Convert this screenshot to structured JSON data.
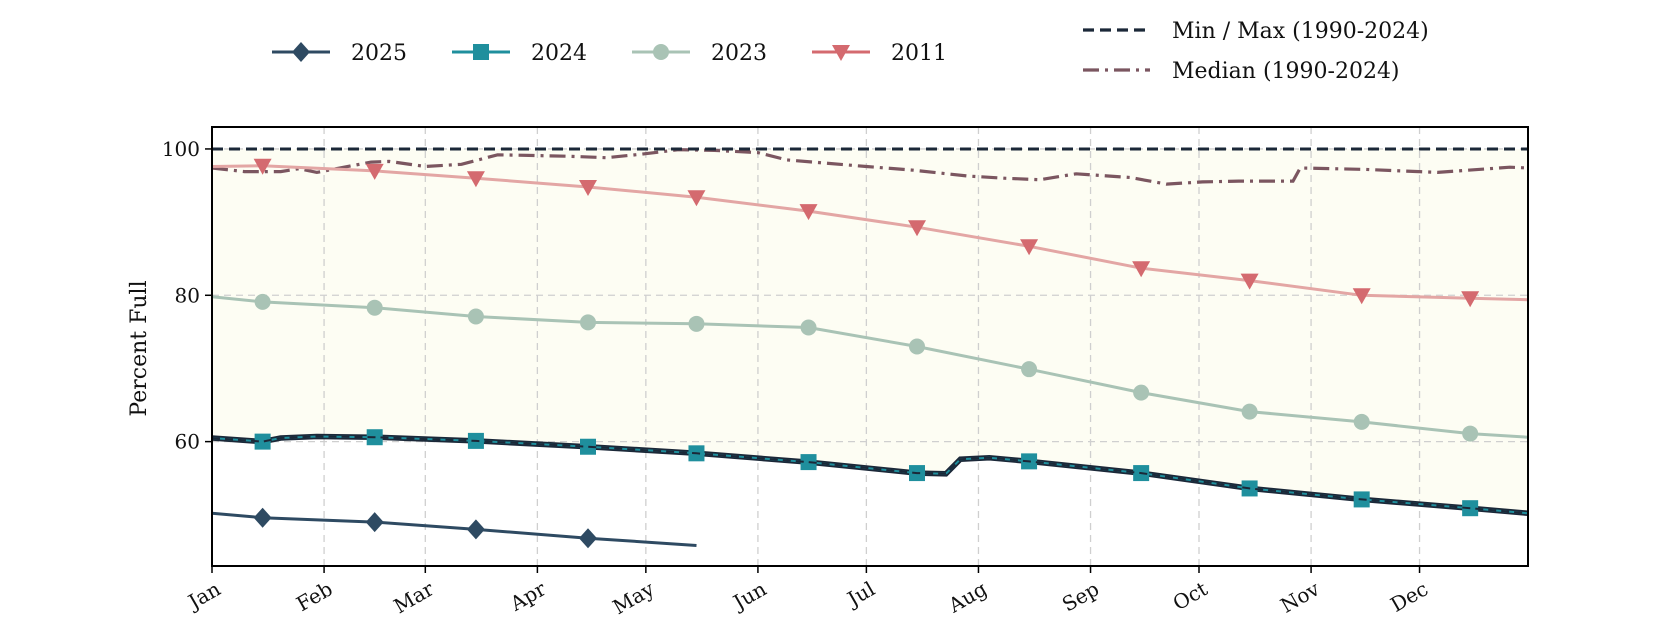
{
  "chart_data": {
    "type": "line",
    "title": "",
    "xlabel": "",
    "ylabel": "Percent Full",
    "xlim": [
      1,
      365
    ],
    "ylim": [
      43,
      103
    ],
    "x_ticks": [
      {
        "label": "Jan",
        "day": 1
      },
      {
        "label": "Feb",
        "day": 32
      },
      {
        "label": "Mar",
        "day": 60
      },
      {
        "label": "Apr",
        "day": 91
      },
      {
        "label": "May",
        "day": 121
      },
      {
        "label": "Jun",
        "day": 152
      },
      {
        "label": "Jul",
        "day": 182
      },
      {
        "label": "Aug",
        "day": 213
      },
      {
        "label": "Sep",
        "day": 244
      },
      {
        "label": "Oct",
        "day": 274
      },
      {
        "label": "Nov",
        "day": 305
      },
      {
        "label": "Dec",
        "day": 335
      }
    ],
    "y_ticks": [
      60,
      80,
      100
    ],
    "grid": true,
    "legend_placement": "top",
    "series": [
      {
        "name": "2025",
        "color": "#2e4a62",
        "marker": "diamond",
        "x": [
          1,
          15,
          46,
          74,
          105,
          135
        ],
        "y": [
          50.2,
          49.6,
          49.0,
          48.0,
          46.8,
          45.8
        ],
        "marker_x": [
          15,
          46,
          74,
          105
        ]
      },
      {
        "name": "2024",
        "color": "#1f8f9d",
        "marker": "square",
        "x": [
          1,
          15,
          20,
          30,
          46,
          74,
          105,
          135,
          166,
          196,
          204,
          208,
          216,
          227,
          258,
          288,
          319,
          349,
          365
        ],
        "y": [
          60.5,
          60.0,
          60.5,
          60.7,
          60.6,
          60.1,
          59.3,
          58.4,
          57.2,
          55.7,
          55.6,
          57.6,
          57.8,
          57.3,
          55.7,
          53.6,
          52.1,
          50.9,
          50.2
        ],
        "marker_x": [
          15,
          46,
          74,
          105,
          135,
          166,
          196,
          227,
          258,
          288,
          319,
          349
        ]
      },
      {
        "name": "2023",
        "color": "#a9c3b5",
        "marker": "circle",
        "x": [
          1,
          15,
          46,
          74,
          105,
          135,
          166,
          196,
          227,
          258,
          288,
          319,
          349,
          365
        ],
        "y": [
          79.8,
          79.1,
          78.3,
          77.1,
          76.3,
          76.1,
          75.6,
          73.0,
          69.9,
          66.7,
          64.1,
          62.7,
          61.1,
          60.6
        ],
        "marker_x": [
          15,
          46,
          74,
          105,
          135,
          166,
          196,
          227,
          258,
          288,
          319,
          349
        ]
      },
      {
        "name": "2011",
        "color": "#d46a6f",
        "line_color": "#e3a6a4",
        "marker": "triangle-down",
        "x": [
          1,
          15,
          46,
          74,
          105,
          135,
          166,
          196,
          227,
          258,
          288,
          319,
          349,
          365
        ],
        "y": [
          97.6,
          97.7,
          97.0,
          96.0,
          94.8,
          93.4,
          91.5,
          89.3,
          86.7,
          83.7,
          82.0,
          80.0,
          79.6,
          79.4
        ],
        "marker_x": [
          15,
          46,
          74,
          105,
          135,
          166,
          196,
          227,
          258,
          288,
          319,
          349
        ]
      },
      {
        "name": "Min / Max (1990-2024)",
        "color": "#1b2838",
        "dash": "dashed",
        "band_fill": "#fdfdf3",
        "max": {
          "x": [
            1,
            365
          ],
          "y": [
            100.0,
            100.0
          ]
        },
        "min": {
          "x": [
            1,
            15,
            20,
            30,
            46,
            74,
            105,
            135,
            166,
            196,
            204,
            208,
            216,
            227,
            258,
            288,
            319,
            349,
            365
          ],
          "y": [
            60.5,
            60.0,
            60.5,
            60.7,
            60.6,
            60.1,
            59.3,
            58.4,
            57.2,
            55.7,
            55.6,
            57.6,
            57.8,
            57.3,
            55.7,
            53.6,
            52.1,
            50.9,
            50.2
          ]
        }
      },
      {
        "name": "Median (1990-2024)",
        "color": "#7b5660",
        "dash": "dashdot",
        "x": [
          1,
          10,
          20,
          25,
          30,
          45,
          50,
          60,
          70,
          80,
          90,
          100,
          110,
          120,
          130,
          140,
          152,
          160,
          170,
          182,
          195,
          210,
          220,
          230,
          240,
          255,
          265,
          275,
          285,
          300,
          302,
          320,
          340,
          360,
          365
        ],
        "y": [
          97.4,
          96.9,
          96.9,
          97.3,
          96.8,
          98.2,
          98.3,
          97.6,
          97.9,
          99.2,
          99.1,
          99.0,
          98.8,
          99.3,
          99.9,
          99.8,
          99.5,
          98.5,
          98.1,
          97.6,
          97.1,
          96.3,
          96.0,
          95.8,
          96.6,
          96.1,
          95.2,
          95.5,
          95.6,
          95.6,
          97.4,
          97.2,
          96.8,
          97.5,
          97.4
        ]
      }
    ]
  }
}
